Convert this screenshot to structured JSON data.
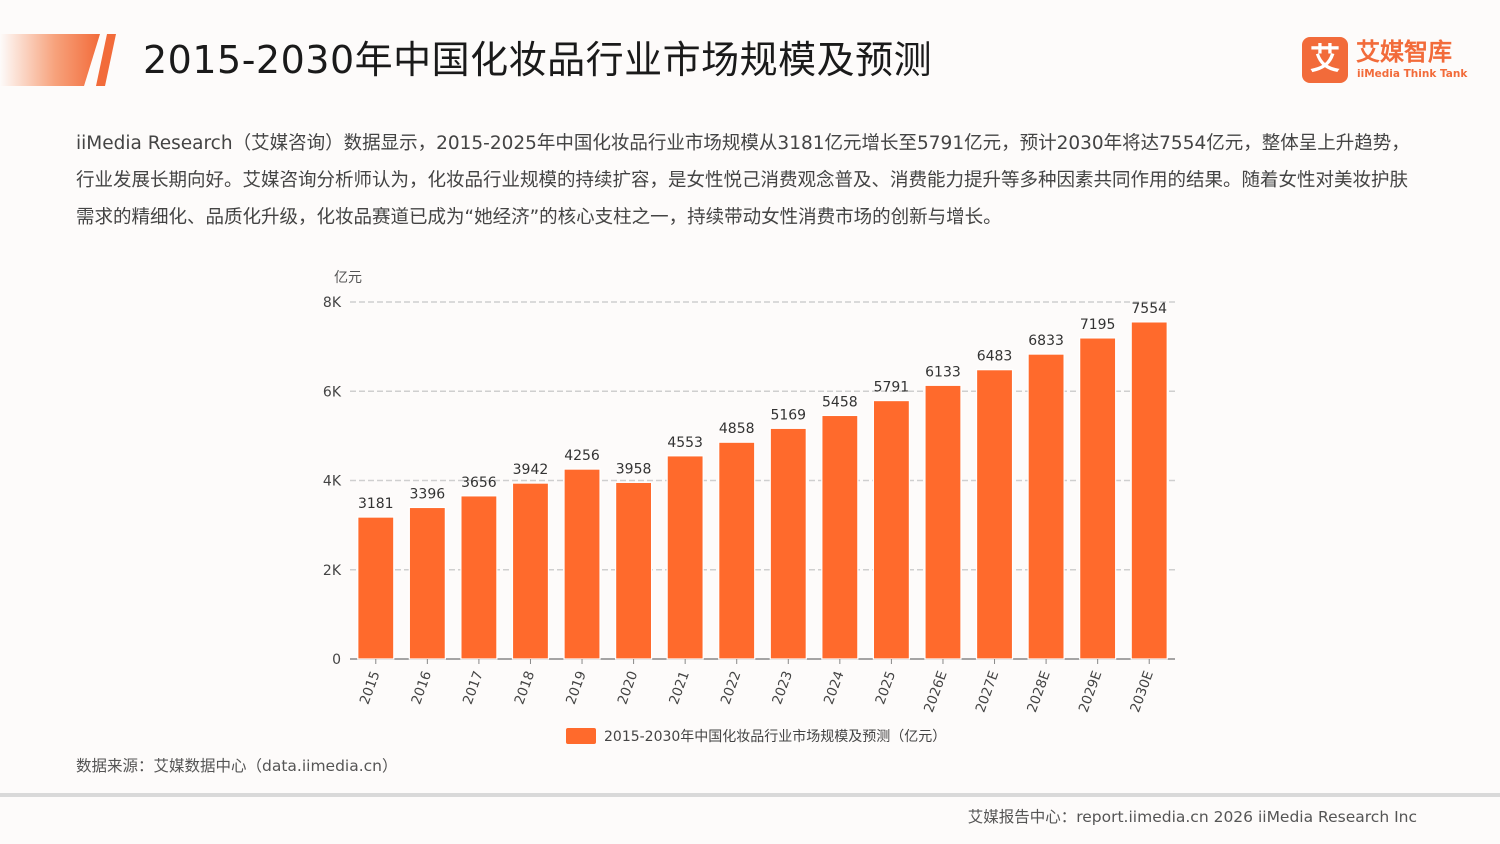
{
  "header": {
    "title": "2015-2030年中国化妆品行业市场规模及预测",
    "logo_mark": "艾",
    "logo_name": "艾媒智库",
    "logo_sub": "iiMedia Think Tank"
  },
  "summary": "iiMedia Research（艾媒咨询）数据显示，2015-2025年中国化妆品行业市场规模从3181亿元增长至5791亿元，预计2030年将达7554亿元，整体呈上升趋势，行业发展长期向好。艾媒咨询分析师认为，化妆品行业规模的持续扩容，是女性悦己消费观念普及、消费能力提升等多种因素共同作用的结果。随着女性对美妆护肤需求的精细化、品质化升级，化妆品赛道已成为“她经济”的核心支柱之一，持续带动女性消费市场的创新与增长。",
  "chart_data": {
    "type": "bar",
    "categories": [
      "2015",
      "2016",
      "2017",
      "2018",
      "2019",
      "2020",
      "2021",
      "2022",
      "2023",
      "2024",
      "2025",
      "2026E",
      "2027E",
      "2028E",
      "2029E",
      "2030E"
    ],
    "series": [
      {
        "name": "2015-2030年中国化妆品行业市场规模及预测（亿元）",
        "values": [
          3181,
          3396,
          3656,
          3942,
          4256,
          3958,
          4553,
          4858,
          5169,
          5458,
          5791,
          6133,
          6483,
          6833,
          7195,
          7554
        ],
        "color": "#ff6a2c"
      }
    ],
    "ylabel": "亿元",
    "ylim": [
      0,
      8000
    ],
    "yticks": [
      0,
      2000,
      4000,
      6000,
      8000
    ],
    "ytick_labels": [
      "0",
      "2K",
      "4K",
      "6K",
      "8K"
    ],
    "grid": true,
    "legend_position": "bottom",
    "data_labels": true
  },
  "footer": {
    "source": "数据来源：艾媒数据中心（data.iimedia.cn）",
    "credit": "艾媒报告中心：report.iimedia.cn   2026 iiMedia Research Inc"
  }
}
